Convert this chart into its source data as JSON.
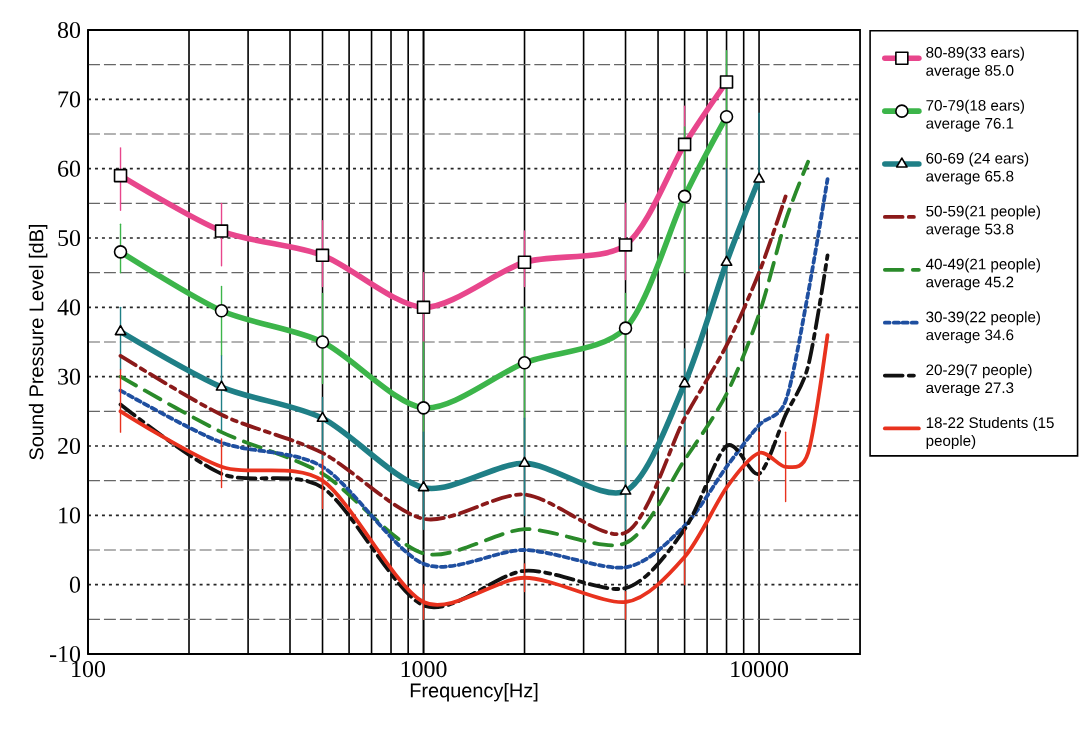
{
  "chart_data": {
    "type": "line",
    "xlabel": "Frequency[Hz]",
    "ylabel": "Sound Pressure Level [dB]",
    "log": "x",
    "xlim": [
      100,
      20000
    ],
    "ylim": [
      -10,
      80
    ],
    "xticks": [
      100,
      1000,
      10000
    ],
    "yticks": [
      -10,
      0,
      10,
      20,
      30,
      40,
      50,
      60,
      70,
      80
    ],
    "grid": true,
    "legend": "right",
    "x": [
      125,
      250,
      500,
      1000,
      2000,
      4000,
      6000,
      8000,
      10000,
      12000,
      14000,
      16000
    ],
    "series": [
      {
        "name": "80-89(33 ears) average 85.0",
        "color": "#e8468c",
        "marker": "square",
        "line_style": "solid",
        "values": [
          59,
          51,
          47.5,
          40,
          46.5,
          49,
          63.5,
          72.5,
          null,
          null,
          null,
          null
        ],
        "errors": [
          [
            54,
            63
          ],
          [
            46,
            55
          ],
          [
            43,
            52.5
          ],
          [
            35,
            45
          ],
          [
            43,
            51
          ],
          [
            44,
            55
          ],
          [
            60,
            69
          ],
          null,
          null,
          null,
          null,
          null
        ]
      },
      {
        "name": "70-79(18 ears) average 76.1",
        "color": "#3cb54a",
        "marker": "circle",
        "line_style": "solid",
        "values": [
          48,
          39.5,
          35,
          25.5,
          32,
          37,
          56,
          67.5,
          null,
          null,
          null,
          null
        ],
        "errors": [
          [
            45,
            52
          ],
          [
            33,
            43
          ],
          [
            29,
            42
          ],
          [
            18,
            35
          ],
          [
            20,
            40
          ],
          [
            20,
            42
          ],
          [
            45,
            66
          ],
          [
            60,
            77
          ],
          null,
          null,
          null,
          null
        ]
      },
      {
        "name": "60-69 (24 ears) average 65.8",
        "color": "#1f7f86",
        "marker": "triangle",
        "line_style": "solid",
        "values": [
          36.5,
          28.5,
          24,
          14,
          17.5,
          13.5,
          29,
          46.5,
          58.5,
          null,
          null,
          null
        ],
        "errors": [
          [
            31,
            40
          ],
          [
            22,
            33
          ],
          [
            18,
            27
          ],
          [
            8,
            22
          ],
          [
            10,
            24
          ],
          [
            8,
            20
          ],
          [
            20,
            34
          ],
          [
            30,
            60
          ],
          [
            45,
            68
          ],
          null,
          null,
          null
        ]
      },
      {
        "name": "50-59(21 people) average 53.8",
        "color": "#8b1a1a",
        "marker": "none",
        "line_style": "dashdot",
        "values": [
          33,
          24.5,
          19,
          9.5,
          13,
          7.5,
          24,
          34.5,
          45,
          56,
          null,
          null
        ]
      },
      {
        "name": "40-49(21 people) average 45.2",
        "color": "#2a8a2a",
        "marker": "none",
        "line_style": "dashed",
        "values": [
          30,
          22,
          16,
          4.5,
          8,
          6,
          18,
          27.5,
          39,
          52.5,
          61,
          null
        ]
      },
      {
        "name": "30-39(22 people) average 34.6",
        "color": "#1f4fa0",
        "marker": "none",
        "line_style": "dotted",
        "values": [
          28,
          20.5,
          17,
          3,
          5,
          2.5,
          8.5,
          17,
          23,
          26.5,
          42,
          58.5
        ]
      },
      {
        "name": "20-29(7 people) average 27.3",
        "color": "#111111",
        "marker": "none",
        "line_style": "dashdot",
        "values": [
          26,
          16,
          14,
          -3,
          2,
          -0.5,
          8,
          20,
          16,
          24.5,
          31.5,
          47.5
        ]
      },
      {
        "name": "18-22 Students (15 people)",
        "color": "#e8321e",
        "marker": "none",
        "line_style": "solid",
        "values": [
          25,
          17,
          15,
          -2.5,
          1,
          -2.5,
          4,
          14,
          19,
          17,
          19,
          36
        ],
        "errors": [
          [
            22,
            31
          ],
          [
            14,
            21
          ],
          [
            11,
            18
          ],
          [
            -5,
            0
          ],
          [
            -1,
            3
          ],
          [
            -5,
            -1
          ],
          [
            0,
            8
          ],
          null,
          [
            15,
            22
          ],
          [
            12,
            22
          ],
          null,
          null
        ]
      }
    ]
  }
}
